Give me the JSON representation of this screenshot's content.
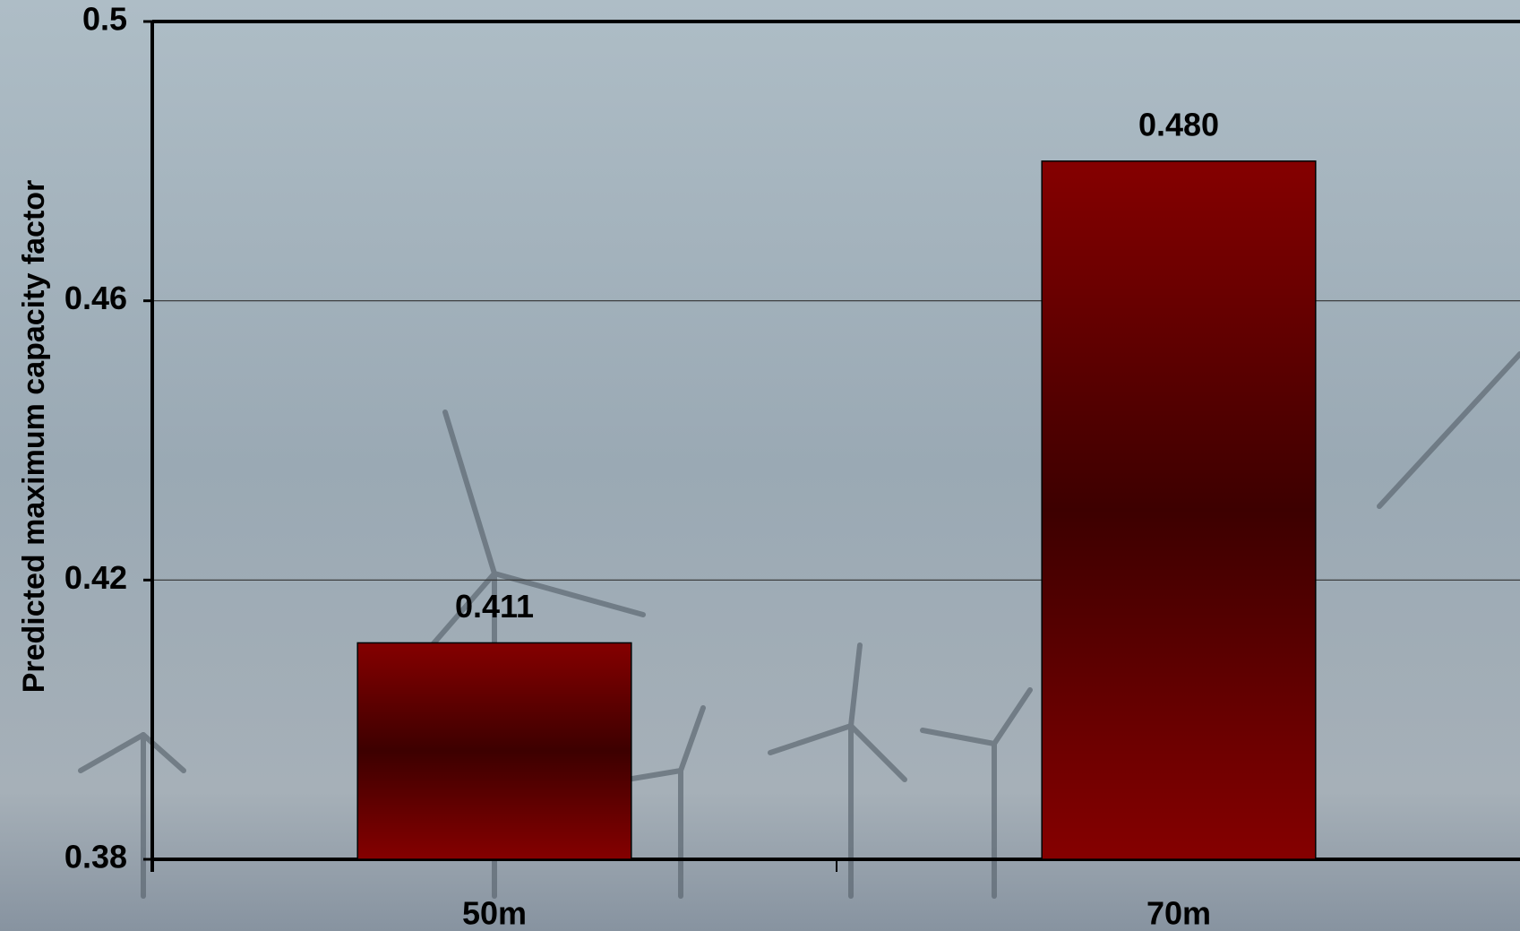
{
  "chart_data": {
    "type": "bar",
    "y_label": "Predicted maximum capacity factor",
    "categories": [
      "50m",
      "70m"
    ],
    "values": [
      0.411,
      0.48
    ],
    "value_labels": [
      "0.411",
      "0.480"
    ],
    "color": "#800000",
    "ylim": [
      0.38,
      0.5
    ],
    "yticks": [
      0.38,
      0.42,
      0.46,
      0.5
    ],
    "grid": true
  }
}
